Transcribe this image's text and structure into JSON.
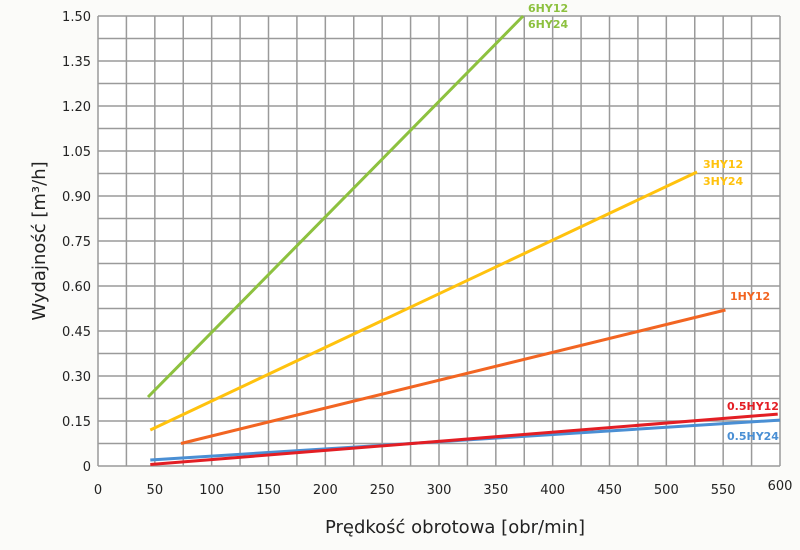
{
  "chart_data": {
    "type": "line",
    "title": "",
    "xlabel": "Prędkość obrotowa [obr/min]",
    "ylabel": "Wydajność [m³/h]",
    "xlim": [
      0,
      600
    ],
    "ylim": [
      0,
      1.5
    ],
    "grid": true,
    "x_ticks": [
      "0",
      "50",
      "100",
      "150",
      "200",
      "250",
      "300",
      "350",
      "400",
      "450",
      "500",
      "550",
      "600"
    ],
    "y_ticks": [
      "0",
      "0.15",
      "0.30",
      "0.45",
      "0.60",
      "0.75",
      "0.90",
      "1.05",
      "1.20",
      "1.35",
      "1.50"
    ],
    "legend_position": "inline labels at line ends",
    "series": [
      {
        "name": "6HY12 / 6HY24",
        "labels": [
          "6HY12",
          "6HY24"
        ],
        "color": "#8dc13f",
        "x": [
          44,
          374
        ],
        "y": [
          0.23,
          1.5
        ]
      },
      {
        "name": "3HY12 / 3HY24",
        "labels": [
          "3HY12",
          "3HY24"
        ],
        "color": "#ffc20e",
        "x": [
          46,
          527
        ],
        "y": [
          0.12,
          0.98
        ]
      },
      {
        "name": "1HY12",
        "labels": [
          "1HY12"
        ],
        "color": "#f26522",
        "x": [
          73,
          552
        ],
        "y": [
          0.075,
          0.52
        ]
      },
      {
        "name": "0.5HY12",
        "labels": [
          "0.5HY12"
        ],
        "color": "#e31e24",
        "x": [
          46,
          598
        ],
        "y": [
          0.005,
          0.173
        ]
      },
      {
        "name": "0.5HY24",
        "labels": [
          "0.5HY24"
        ],
        "color": "#4a8fd4",
        "x": [
          46,
          600
        ],
        "y": [
          0.02,
          0.153
        ]
      }
    ]
  }
}
